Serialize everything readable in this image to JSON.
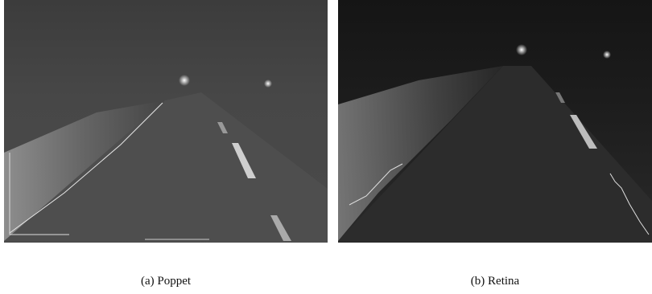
{
  "figure": {
    "panels": [
      {
        "caption": "(a) Poppet"
      },
      {
        "caption": "(b) Retina"
      }
    ]
  }
}
